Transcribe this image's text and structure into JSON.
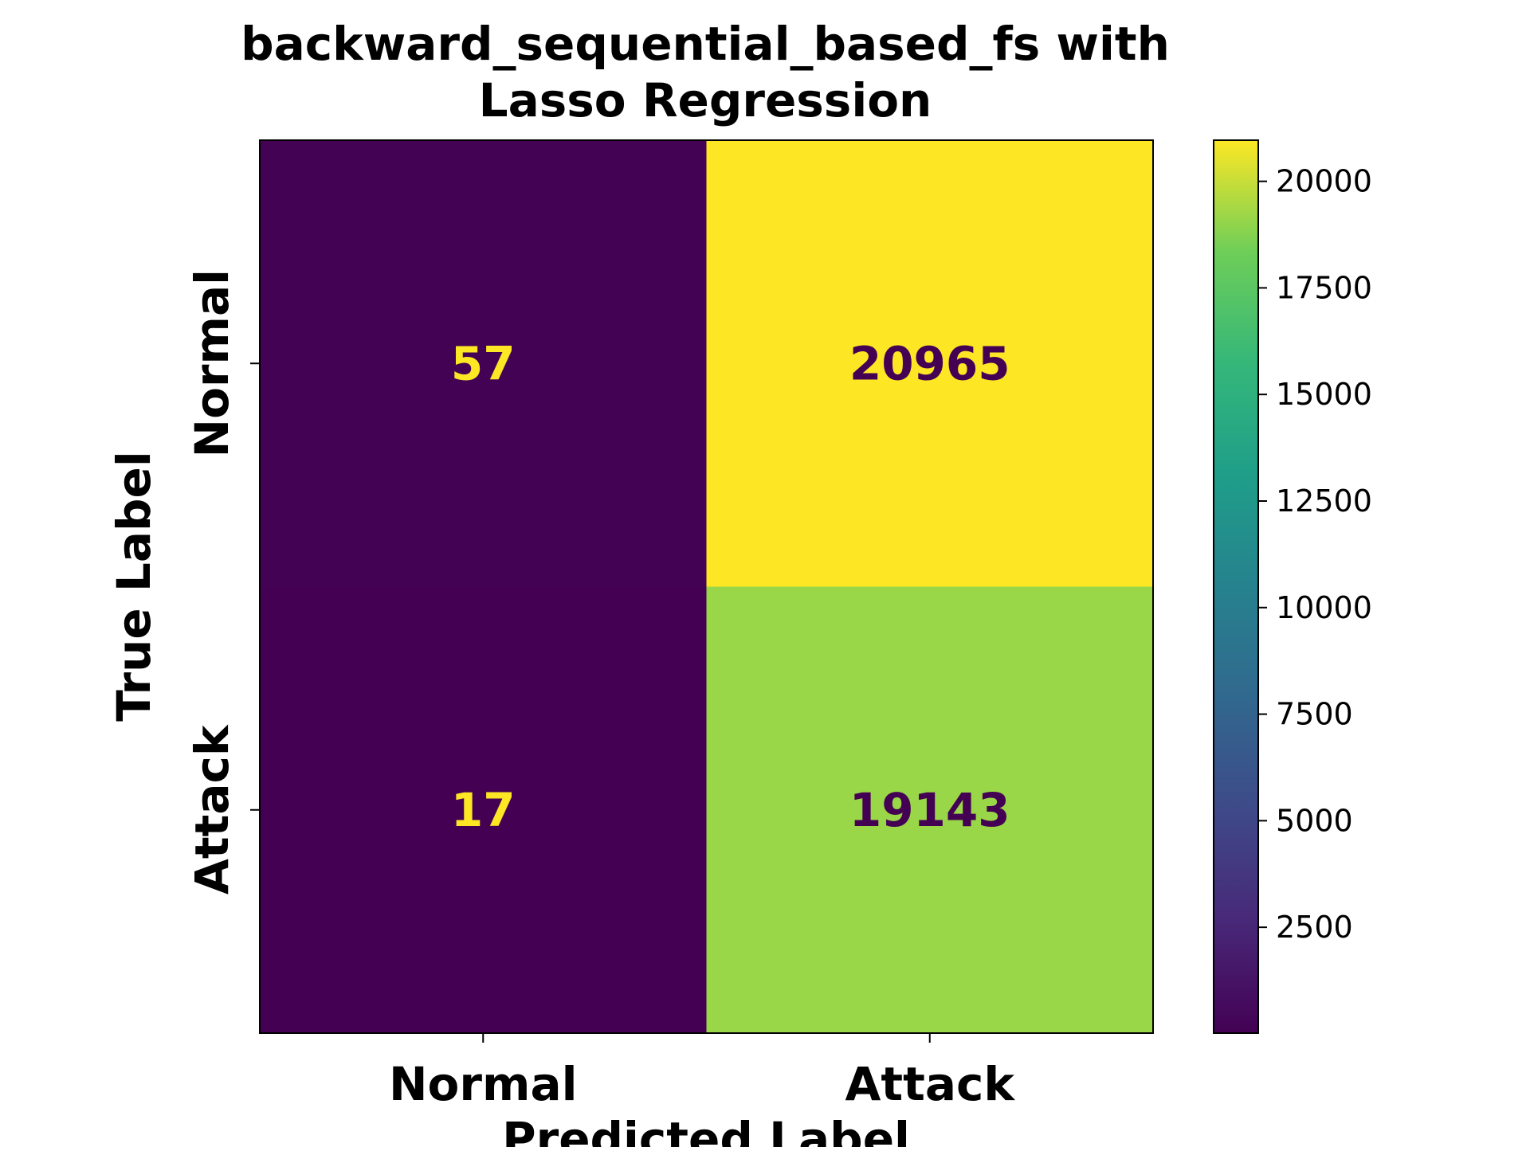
{
  "chart_data": {
    "type": "heatmap",
    "title_lines": [
      "backward_sequential_based_fs with",
      "Lasso Regression"
    ],
    "xlabel": "Predicted Label",
    "ylabel": "True Label",
    "x_categories": [
      "Normal",
      "Attack"
    ],
    "y_categories": [
      "Normal",
      "Attack"
    ],
    "matrix": [
      [
        57,
        20965
      ],
      [
        17,
        19143
      ]
    ],
    "colorbar": {
      "colormap": "viridis",
      "range": [
        17,
        20965
      ],
      "ticks": [
        "2500",
        "5000",
        "7500",
        "10000",
        "12500",
        "15000",
        "17500",
        "20000"
      ]
    },
    "colors": {
      "low": "#440154",
      "high": "#fde725",
      "text_on_dark": "#fde725",
      "text_on_light": "#440154"
    }
  }
}
